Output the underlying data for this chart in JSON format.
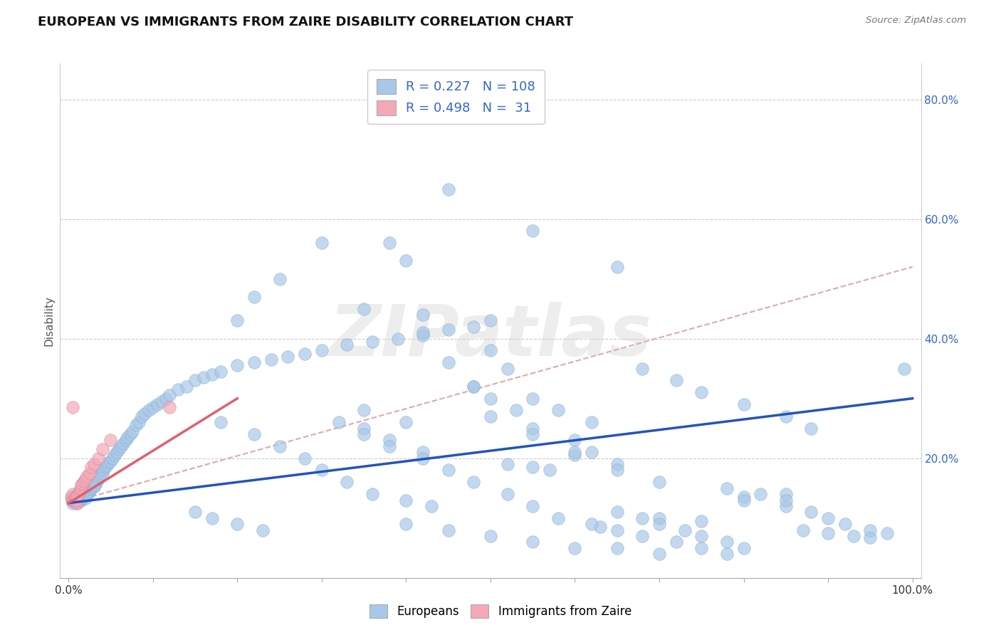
{
  "title": "EUROPEAN VS IMMIGRANTS FROM ZAIRE DISABILITY CORRELATION CHART",
  "source": "Source: ZipAtlas.com",
  "ylabel": "Disability",
  "xlim": [
    -0.01,
    1.01
  ],
  "ylim": [
    0.0,
    0.86
  ],
  "x_ticks": [
    0.0,
    0.1,
    0.2,
    0.3,
    0.4,
    0.5,
    0.6,
    0.7,
    0.8,
    0.9,
    1.0
  ],
  "x_tick_labels": [
    "0.0%",
    "",
    "",
    "",
    "",
    "",
    "",
    "",
    "",
    "",
    "100.0%"
  ],
  "y_ticks": [
    0.0,
    0.2,
    0.4,
    0.6,
    0.8
  ],
  "y_tick_labels": [
    "",
    "20.0%",
    "40.0%",
    "60.0%",
    "80.0%"
  ],
  "european_color": "#a8c8e8",
  "zaire_color": "#f4a8b8",
  "european_line_color": "#2255bb",
  "zaire_line_color": "#e06070",
  "trend_line_color": "#ddaaaa",
  "R_european": 0.227,
  "N_european": 108,
  "R_zaire": 0.498,
  "N_zaire": 31,
  "legend_text_color": "#3366cc",
  "watermark": "ZIPatlas",
  "background_color": "#ffffff",
  "grid_color": "#cccccc",
  "eu_x": [
    0.005,
    0.005,
    0.005,
    0.007,
    0.007,
    0.008,
    0.008,
    0.008,
    0.009,
    0.009,
    0.01,
    0.01,
    0.01,
    0.01,
    0.012,
    0.012,
    0.012,
    0.013,
    0.014,
    0.014,
    0.015,
    0.015,
    0.016,
    0.016,
    0.017,
    0.018,
    0.018,
    0.019,
    0.02,
    0.02,
    0.02,
    0.02,
    0.022,
    0.023,
    0.025,
    0.026,
    0.027,
    0.028,
    0.03,
    0.031,
    0.032,
    0.033,
    0.035,
    0.036,
    0.038,
    0.04,
    0.041,
    0.043,
    0.045,
    0.047,
    0.05,
    0.052,
    0.055,
    0.057,
    0.06,
    0.062,
    0.065,
    0.068,
    0.07,
    0.073,
    0.076,
    0.08,
    0.083,
    0.087,
    0.09,
    0.095,
    0.1,
    0.105,
    0.11,
    0.115,
    0.12,
    0.13,
    0.14,
    0.15,
    0.16,
    0.17,
    0.18,
    0.2,
    0.22,
    0.24,
    0.26,
    0.28,
    0.3,
    0.33,
    0.36,
    0.39,
    0.42,
    0.45,
    0.48,
    0.5,
    0.52,
    0.55,
    0.57,
    0.6,
    0.63,
    0.65,
    0.7,
    0.75,
    0.8,
    0.85,
    0.87,
    0.9,
    0.93,
    0.95,
    0.97,
    0.99,
    0.35,
    0.4
  ],
  "eu_y": [
    0.125,
    0.13,
    0.135,
    0.128,
    0.132,
    0.127,
    0.131,
    0.136,
    0.129,
    0.134,
    0.125,
    0.128,
    0.132,
    0.137,
    0.128,
    0.133,
    0.137,
    0.13,
    0.132,
    0.136,
    0.13,
    0.135,
    0.133,
    0.138,
    0.134,
    0.136,
    0.14,
    0.138,
    0.133,
    0.137,
    0.142,
    0.147,
    0.138,
    0.143,
    0.145,
    0.148,
    0.15,
    0.153,
    0.152,
    0.156,
    0.155,
    0.16,
    0.165,
    0.17,
    0.172,
    0.175,
    0.18,
    0.185,
    0.188,
    0.192,
    0.195,
    0.2,
    0.205,
    0.21,
    0.215,
    0.22,
    0.225,
    0.23,
    0.235,
    0.24,
    0.245,
    0.255,
    0.26,
    0.27,
    0.275,
    0.28,
    0.285,
    0.29,
    0.295,
    0.3,
    0.305,
    0.315,
    0.32,
    0.33,
    0.335,
    0.34,
    0.345,
    0.355,
    0.36,
    0.365,
    0.37,
    0.375,
    0.38,
    0.39,
    0.395,
    0.4,
    0.405,
    0.415,
    0.42,
    0.43,
    0.19,
    0.185,
    0.18,
    0.205,
    0.085,
    0.11,
    0.1,
    0.095,
    0.135,
    0.14,
    0.08,
    0.075,
    0.07,
    0.068,
    0.075,
    0.35,
    0.28,
    0.26
  ],
  "eu_outliers_x": [
    0.38,
    0.45,
    0.25,
    0.3,
    0.4,
    0.55,
    0.65,
    0.42,
    0.2,
    0.22,
    0.35,
    0.5,
    0.52,
    0.48,
    0.55,
    0.58,
    0.62,
    0.42,
    0.45,
    0.48,
    0.5,
    0.53,
    0.55,
    0.6,
    0.62,
    0.65,
    0.5,
    0.55,
    0.6,
    0.65,
    0.7,
    0.18,
    0.22,
    0.25,
    0.28,
    0.3,
    0.33,
    0.36,
    0.4,
    0.43,
    0.35,
    0.38,
    0.42,
    0.15,
    0.17,
    0.2,
    0.23,
    0.4,
    0.45,
    0.5,
    0.55,
    0.6,
    0.65,
    0.7,
    0.32,
    0.35,
    0.38,
    0.42,
    0.45,
    0.48,
    0.52,
    0.55,
    0.58,
    0.62,
    0.65,
    0.68,
    0.72,
    0.75,
    0.78,
    0.8,
    0.85,
    0.88,
    0.9,
    0.92,
    0.95,
    0.82,
    0.78,
    0.85,
    0.68,
    0.72,
    0.75,
    0.8,
    0.85,
    0.88,
    0.68,
    0.7,
    0.73,
    0.75,
    0.78,
    0.8
  ],
  "eu_outliers_y": [
    0.56,
    0.65,
    0.5,
    0.56,
    0.53,
    0.58,
    0.52,
    0.44,
    0.43,
    0.47,
    0.45,
    0.38,
    0.35,
    0.32,
    0.3,
    0.28,
    0.26,
    0.41,
    0.36,
    0.32,
    0.3,
    0.28,
    0.25,
    0.23,
    0.21,
    0.19,
    0.27,
    0.24,
    0.21,
    0.18,
    0.16,
    0.26,
    0.24,
    0.22,
    0.2,
    0.18,
    0.16,
    0.14,
    0.13,
    0.12,
    0.25,
    0.23,
    0.21,
    0.11,
    0.1,
    0.09,
    0.08,
    0.09,
    0.08,
    0.07,
    0.06,
    0.05,
    0.05,
    0.04,
    0.26,
    0.24,
    0.22,
    0.2,
    0.18,
    0.16,
    0.14,
    0.12,
    0.1,
    0.09,
    0.08,
    0.07,
    0.06,
    0.05,
    0.04,
    0.13,
    0.12,
    0.11,
    0.1,
    0.09,
    0.08,
    0.14,
    0.15,
    0.13,
    0.35,
    0.33,
    0.31,
    0.29,
    0.27,
    0.25,
    0.1,
    0.09,
    0.08,
    0.07,
    0.06,
    0.05
  ],
  "za_x": [
    0.003,
    0.004,
    0.005,
    0.005,
    0.006,
    0.007,
    0.007,
    0.008,
    0.008,
    0.009,
    0.009,
    0.01,
    0.01,
    0.01,
    0.012,
    0.013,
    0.014,
    0.015,
    0.015,
    0.017,
    0.018,
    0.02,
    0.022,
    0.025,
    0.027,
    0.03,
    0.035,
    0.04,
    0.05,
    0.12,
    0.005
  ],
  "za_y": [
    0.135,
    0.13,
    0.135,
    0.14,
    0.13,
    0.128,
    0.133,
    0.127,
    0.132,
    0.129,
    0.136,
    0.125,
    0.13,
    0.138,
    0.14,
    0.145,
    0.148,
    0.15,
    0.155,
    0.158,
    0.162,
    0.165,
    0.17,
    0.175,
    0.185,
    0.19,
    0.2,
    0.215,
    0.23,
    0.285,
    0.285
  ],
  "eu_line_x0": 0.0,
  "eu_line_x1": 1.0,
  "eu_line_y0": 0.125,
  "eu_line_y1": 0.3,
  "za_line_x0": 0.0,
  "za_line_x1": 0.2,
  "za_line_y0": 0.125,
  "za_line_y1": 0.3,
  "dashed_line_x0": 0.0,
  "dashed_line_x1": 1.0,
  "dashed_line_y0": 0.125,
  "dashed_line_y1": 0.52
}
